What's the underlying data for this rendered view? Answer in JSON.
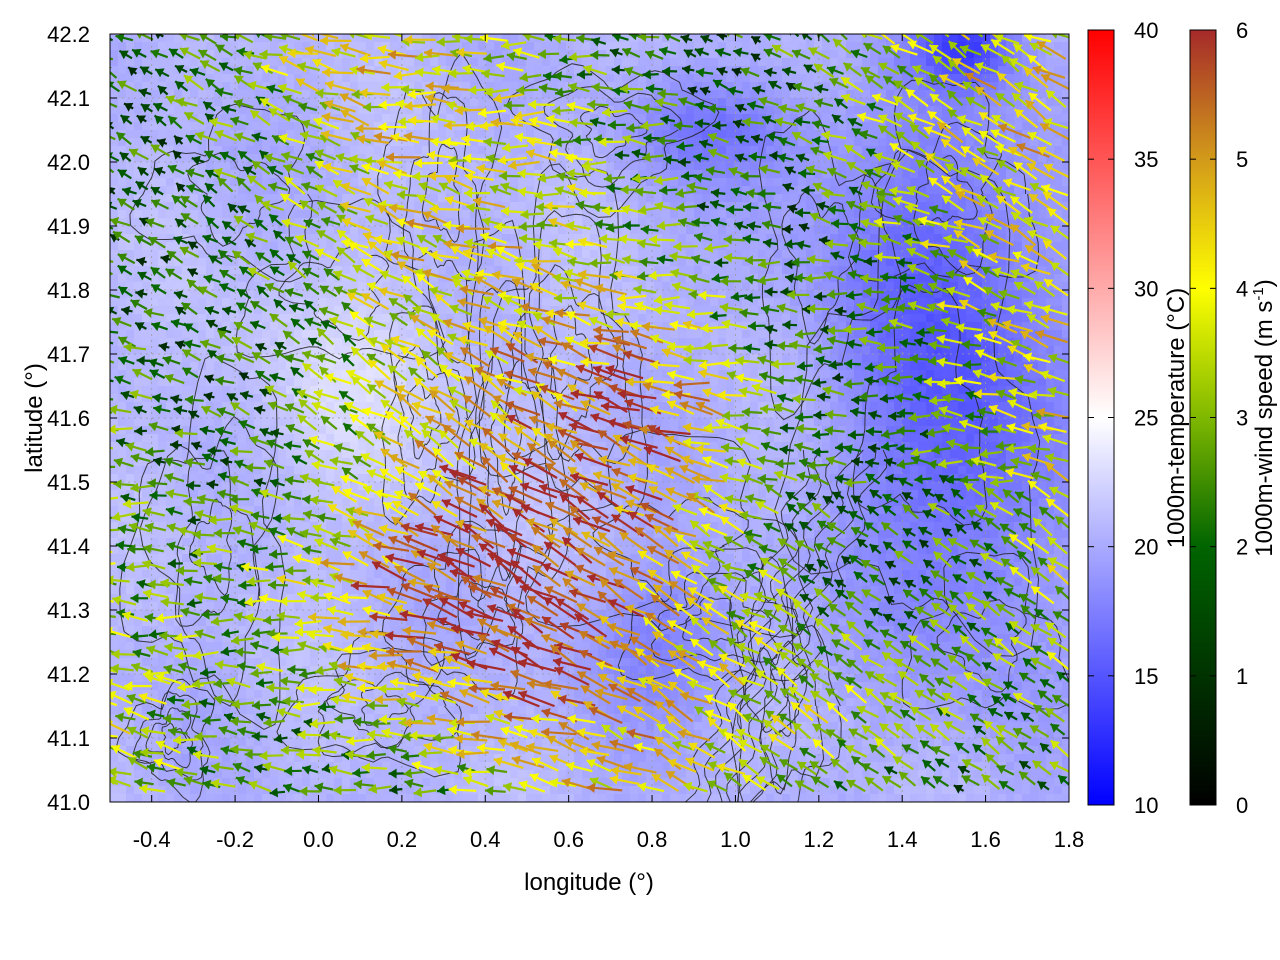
{
  "chart_data": {
    "type": "heatmap",
    "title": "",
    "xlabel": "longitude (°)",
    "ylabel": "latitude (°)",
    "xlim": [
      -0.5,
      1.8
    ],
    "ylim": [
      41.0,
      42.2
    ],
    "x_ticks": [
      -0.4,
      -0.2,
      0.0,
      0.2,
      0.4,
      0.6,
      0.8,
      1.0,
      1.2,
      1.4,
      1.6,
      1.8
    ],
    "x_tick_labels": [
      "-0.4",
      "-0.2",
      "0.0",
      "0.2",
      "0.4",
      "0.6",
      "0.8",
      "1.0",
      "1.2",
      "1.4",
      "1.6",
      "1.8"
    ],
    "y_ticks": [
      41.0,
      41.1,
      41.2,
      41.3,
      41.4,
      41.5,
      41.6,
      41.7,
      41.8,
      41.9,
      42.0,
      42.1,
      42.2
    ],
    "y_tick_labels": [
      "41.0",
      "41.1",
      "41.2",
      "41.3",
      "41.4",
      "41.5",
      "41.6",
      "41.7",
      "41.8",
      "41.9",
      "42.0",
      "42.1",
      "42.2"
    ],
    "grid": true,
    "overlays": [
      "terrain contour lines (black)",
      "wind vectors colored by speed"
    ],
    "temperature_colorbar": {
      "label": "1000m-temperature (°C)",
      "range": [
        10,
        40
      ],
      "ticks": [
        10,
        15,
        20,
        25,
        30,
        35,
        40
      ],
      "tick_labels": [
        "10",
        "15",
        "20",
        "25",
        "30",
        "35",
        "40"
      ],
      "colors": [
        "#0000ff",
        "#ffffff",
        "#ff0000"
      ]
    },
    "wind_colorbar": {
      "label": "1000m-wind speed (m s",
      "label_sup": "-1",
      "label_end": ")",
      "range": [
        0,
        6
      ],
      "ticks": [
        0,
        1,
        2,
        3,
        4,
        5,
        6
      ],
      "tick_labels": [
        "0",
        "1",
        "2",
        "3",
        "4",
        "5",
        "6"
      ],
      "colors": [
        "#000000",
        "#006400",
        "#7fb800",
        "#ffff00",
        "#d29a1a",
        "#a52a2a"
      ]
    },
    "temperature_field_range": [
      12,
      23
    ],
    "wind_speed_field_range": [
      0.5,
      6
    ]
  }
}
